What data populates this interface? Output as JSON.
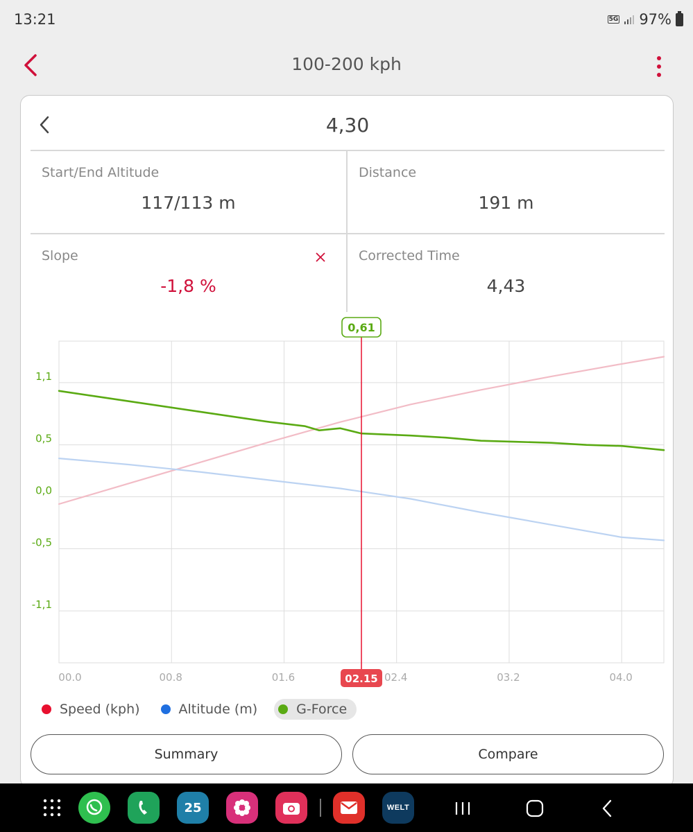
{
  "status_bar": {
    "time": "13:21",
    "network": "5G",
    "battery": "97%"
  },
  "header": {
    "title": "100-200 kph"
  },
  "card": {
    "title": "4,30",
    "stats": [
      {
        "label": "Start/End Altitude",
        "value": "117/113 m"
      },
      {
        "label": "Distance",
        "value": "191 m"
      },
      {
        "label": "Slope",
        "value": "-1,8 %"
      },
      {
        "label": "Corrected Time",
        "value": "4,43"
      }
    ]
  },
  "colors": {
    "accent": "#d0103a",
    "speed": "#e8102f",
    "altitude": "#1f6fe0",
    "gforce": "#5aaa13"
  },
  "chart_data": {
    "type": "line",
    "x_tick_labels": [
      "00.0",
      "00.8",
      "01.6",
      "02.4",
      "03.2",
      "04.0"
    ],
    "y_tick_labels": [
      "1,1",
      "0,5",
      "0,0",
      "-0,5",
      "-1,1"
    ],
    "y_tick_values": [
      1.1,
      0.5,
      0.0,
      -0.5,
      -1.1
    ],
    "xlim": [
      0,
      4.3
    ],
    "ylim": [
      -1.6,
      1.5
    ],
    "cursor": {
      "x": 2.15,
      "x_label": "02.15",
      "value_label": "0,61"
    },
    "legend": [
      {
        "name": "Speed (kph)",
        "color": "#e8102f",
        "active": false
      },
      {
        "name": "Altitude (m)",
        "color": "#1f6fe0",
        "active": false
      },
      {
        "name": "G-Force",
        "color": "#5aaa13",
        "active": true
      }
    ],
    "series": [
      {
        "name": "Speed (kph)",
        "color": "#f2bcc6",
        "x": [
          0,
          0.5,
          1.0,
          1.5,
          2.0,
          2.5,
          3.0,
          3.5,
          4.0,
          4.3
        ],
        "y": [
          -0.07,
          0.13,
          0.33,
          0.53,
          0.72,
          0.89,
          1.03,
          1.16,
          1.28,
          1.35
        ]
      },
      {
        "name": "Altitude (m)",
        "color": "#bcd3f2",
        "x": [
          0,
          0.5,
          1.0,
          1.5,
          2.0,
          2.5,
          3.0,
          3.5,
          4.0,
          4.3
        ],
        "y": [
          0.37,
          0.31,
          0.24,
          0.16,
          0.08,
          -0.02,
          -0.15,
          -0.27,
          -0.39,
          -0.42
        ]
      },
      {
        "name": "G-Force",
        "color": "#5aaa13",
        "x": [
          0,
          0.25,
          0.5,
          0.75,
          1.0,
          1.25,
          1.5,
          1.75,
          1.85,
          2.0,
          2.15,
          2.5,
          2.75,
          3.0,
          3.25,
          3.5,
          3.75,
          4.0,
          4.3
        ],
        "y": [
          1.02,
          0.97,
          0.92,
          0.87,
          0.82,
          0.77,
          0.72,
          0.68,
          0.64,
          0.66,
          0.61,
          0.59,
          0.57,
          0.54,
          0.53,
          0.52,
          0.5,
          0.49,
          0.45
        ]
      }
    ]
  },
  "buttons": {
    "summary": "Summary",
    "compare": "Compare"
  },
  "nav_apps": [
    {
      "icon": "app-drawer-icon"
    },
    {
      "icon": "whatsapp-icon",
      "color": "#2fbf4f"
    },
    {
      "icon": "phone-icon",
      "color": "#1fa35a"
    },
    {
      "icon": "calendar-icon",
      "color": "#1f7fa8",
      "text": "25"
    },
    {
      "icon": "flower-icon",
      "color": "#d8307a"
    },
    {
      "icon": "camera-icon",
      "color": "#e0305a"
    },
    {
      "icon": "mail-icon",
      "color": "#e0302a"
    },
    {
      "icon": "welt-icon",
      "color": "#0e3a5e",
      "text": "WELT"
    }
  ]
}
